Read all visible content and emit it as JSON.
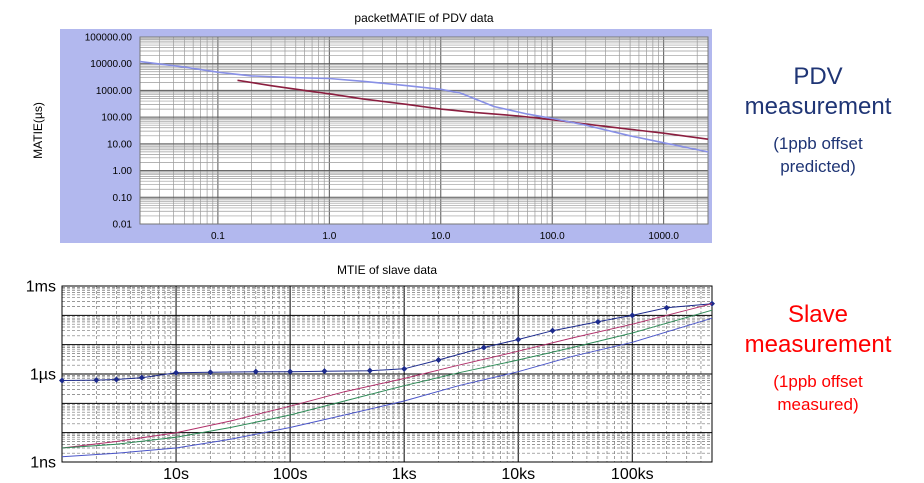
{
  "colors": {
    "pdv_panel_bg": "#b2b8ee",
    "pdv_line_a": "#8b1e3f",
    "pdv_line_b": "#8890e6",
    "pdv_text": "#1f3575",
    "slave_text": "#ff0000"
  },
  "side_text": {
    "pdv_title_1": "PDV",
    "pdv_title_2": "measurement",
    "pdv_note_1": "(1ppb offset",
    "pdv_note_2": "predicted)",
    "slave_title_1": "Slave",
    "slave_title_2": "measurement",
    "slave_note_1": "(1ppb offset",
    "slave_note_2": "measured)"
  },
  "chart_data": [
    {
      "type": "line",
      "title": "packetMATIE of PDV data",
      "xlabel": "",
      "ylabel": "MATIE(µs)",
      "x_scale": "log",
      "y_scale": "log",
      "xlim": [
        0.02,
        2500
      ],
      "ylim": [
        0.01,
        100000
      ],
      "x_ticks": [
        0.1,
        1,
        10,
        100,
        1000
      ],
      "x_tick_labels": [
        "0.1",
        "1.0",
        "10.0",
        "100.0",
        "1000.0"
      ],
      "y_ticks": [
        0.01,
        0.1,
        1,
        10,
        100,
        1000,
        10000,
        100000
      ],
      "y_tick_labels": [
        "0.01",
        "0.10",
        "1.00",
        "10.00",
        "100.00",
        "1000.00",
        "10000.00",
        "100000.00"
      ],
      "grid": true,
      "series": [
        {
          "color": "#8b1e3f",
          "x": [
            0.15,
            0.3,
            0.6,
            1,
            2,
            5,
            10,
            20,
            50,
            100,
            200,
            500,
            1000,
            2500
          ],
          "y": [
            2400,
            1500,
            1000,
            750,
            480,
            300,
            200,
            150,
            110,
            80,
            55,
            35,
            25,
            15
          ]
        },
        {
          "color": "#8890e6",
          "x": [
            0.02,
            0.05,
            0.1,
            0.2,
            0.5,
            1,
            2,
            5,
            10,
            15,
            30,
            60,
            100,
            200,
            500,
            1000,
            2500
          ],
          "y": [
            12000,
            7500,
            4800,
            3500,
            3000,
            2800,
            2200,
            1500,
            1100,
            800,
            250,
            130,
            90,
            50,
            20,
            11,
            5
          ]
        }
      ]
    },
    {
      "type": "line",
      "title": "MTIE of slave data",
      "xlabel": "",
      "ylabel": "",
      "x_scale": "log",
      "y_scale": "log",
      "xlim": [
        1,
        500000
      ],
      "ylim": [
        1e-09,
        0.001
      ],
      "x_ticks": [
        10,
        100,
        1000,
        10000,
        100000
      ],
      "x_tick_labels": [
        "10s",
        "100s",
        "1ks",
        "10ks",
        "100ks"
      ],
      "y_ticks": [
        1e-09,
        1e-06,
        0.001
      ],
      "y_tick_labels": [
        "1ns",
        "1µs",
        "1ms"
      ],
      "grid": true,
      "series": [
        {
          "color": "#1c2a8c",
          "markers": true,
          "x": [
            1,
            2,
            3,
            5,
            10,
            20,
            50,
            100,
            200,
            500,
            1000,
            2000,
            5000,
            10000,
            20000,
            50000,
            100000,
            200000,
            500000
          ],
          "y": [
            6e-07,
            6.2e-07,
            6.5e-07,
            7.5e-07,
            1.1e-06,
            1.15e-06,
            1.2e-06,
            1.2e-06,
            1.25e-06,
            1.3e-06,
            1.5e-06,
            3e-06,
            8e-06,
            1.5e-05,
            3e-05,
            6e-05,
            0.0001,
            0.00018,
            0.00025
          ]
        },
        {
          "color": "#b0306a",
          "x": [
            1,
            3,
            10,
            30,
            100,
            300,
            1000,
            3000,
            10000,
            30000,
            100000,
            500000
          ],
          "y": [
            3e-09,
            5e-09,
            1e-08,
            2.5e-08,
            8e-08,
            2.5e-07,
            7e-07,
            2e-06,
            6e-06,
            1.7e-05,
            5e-05,
            0.00025
          ]
        },
        {
          "color": "#2e8b57",
          "x": [
            1,
            3,
            10,
            30,
            100,
            300,
            1000,
            3000,
            10000,
            30000,
            100000,
            500000
          ],
          "y": [
            3e-09,
            4e-09,
            7e-09,
            1.5e-08,
            4e-08,
            1.2e-07,
            4e-07,
            1.1e-06,
            3e-06,
            8e-06,
            2.5e-05,
            0.00015
          ]
        },
        {
          "color": "#4a55c8",
          "x": [
            1,
            3,
            10,
            30,
            100,
            300,
            1000,
            3000,
            10000,
            30000,
            100000,
            500000
          ],
          "y": [
            1.5e-09,
            2e-09,
            3e-09,
            6e-09,
            1.5e-08,
            4e-08,
            1.2e-07,
            4e-07,
            1.2e-06,
            4e-06,
            1.2e-05,
            8e-05
          ]
        }
      ]
    }
  ]
}
